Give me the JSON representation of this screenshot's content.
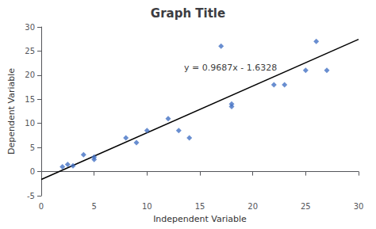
{
  "chart_data": {
    "type": "scatter",
    "title": "Graph Title",
    "xlabel": "Independent Variable",
    "ylabel": "Dependent Variable",
    "series": [
      {
        "type": "scatter",
        "color": "#4472C4",
        "marker": "diamond",
        "x": [
          2,
          2.5,
          3,
          4,
          5,
          5,
          8,
          9,
          10,
          12,
          13,
          14,
          17,
          18,
          18,
          22,
          23,
          25,
          26,
          27
        ],
        "values": [
          1,
          1.5,
          1.2,
          3.5,
          2.5,
          3,
          7,
          6,
          8.5,
          11,
          8.5,
          7,
          26,
          14,
          13.5,
          18,
          18,
          21,
          27,
          21
        ]
      },
      {
        "type": "line",
        "color": "#000000",
        "line_style": "solid",
        "x": [
          0,
          30
        ],
        "values": [
          -1.6328,
          27.4282
        ]
      }
    ],
    "annotations": [
      {
        "text": "y = 0.9687x - 1.6328",
        "x": 13.5,
        "y": 21.5,
        "color": "#000000"
      }
    ],
    "xlim": [
      0,
      30
    ],
    "ylim": [
      -5,
      30
    ],
    "xticks": [
      0,
      5,
      10,
      15,
      20,
      25,
      30
    ],
    "yticks": [
      -5,
      0,
      5,
      10,
      15,
      20,
      25,
      30
    ],
    "grid": false
  }
}
